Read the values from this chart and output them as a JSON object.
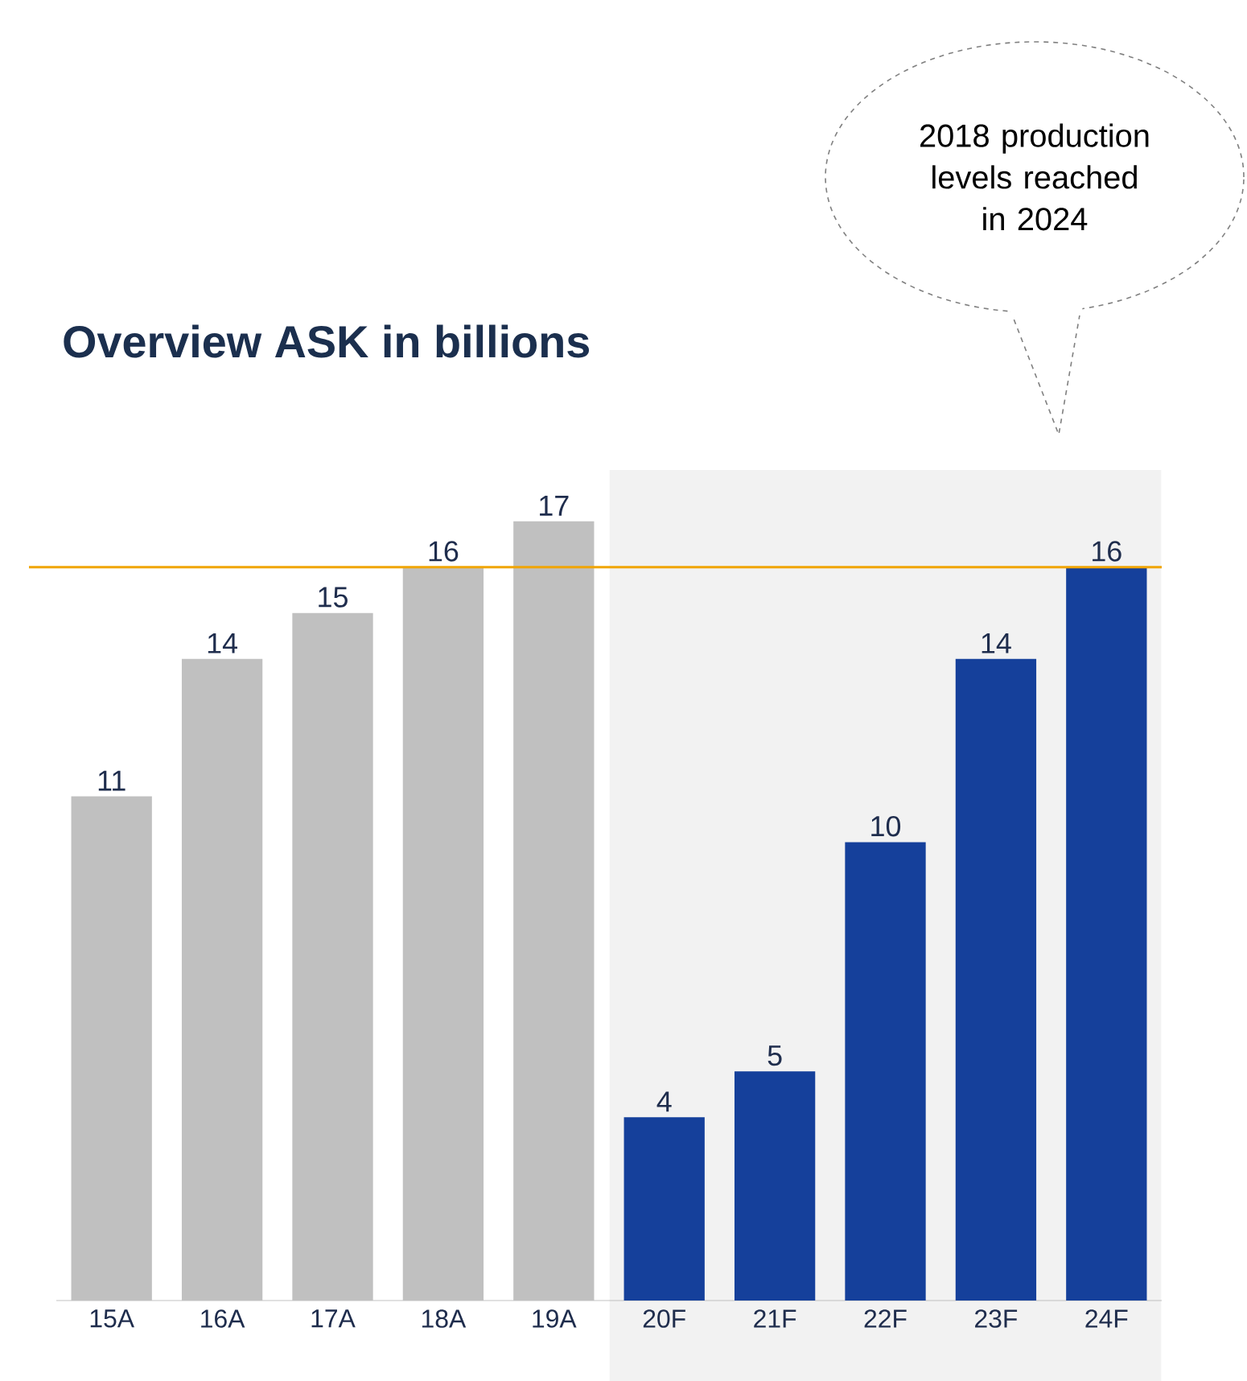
{
  "chart_data": {
    "type": "bar",
    "title": "Overview ASK in billions",
    "categories": [
      "15A",
      "16A",
      "17A",
      "18A",
      "19A",
      "20F",
      "21F",
      "22F",
      "23F",
      "24F"
    ],
    "values": [
      11,
      14,
      15,
      16,
      17,
      4,
      5,
      10,
      14,
      16
    ],
    "colors": [
      "#c0c0c0",
      "#c0c0c0",
      "#c0c0c0",
      "#c0c0c0",
      "#c0c0c0",
      "#15409b",
      "#15409b",
      "#15409b",
      "#15409b",
      "#15409b"
    ],
    "data_labels": true,
    "ref_lines": [
      {
        "axis": "y",
        "value": 16,
        "color": "#f0a500"
      }
    ],
    "bands": [
      {
        "axis": "x",
        "from": "20F",
        "to": "24F",
        "color": "#f2f2f2"
      }
    ],
    "annotations": [
      "2018 production levels reached in 2024"
    ]
  }
}
